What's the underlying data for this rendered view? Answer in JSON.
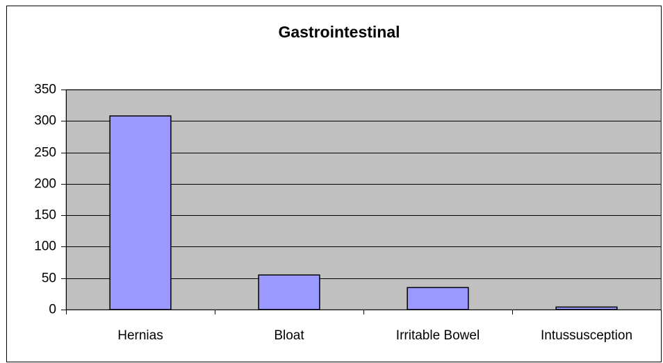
{
  "chart_data": {
    "type": "bar",
    "title": "Gastrointestinal",
    "categories": [
      "Hernias",
      "Bloat",
      "Irritable Bowel",
      "Intussusception"
    ],
    "values": [
      308,
      55,
      35,
      4
    ],
    "color": "#9999ff",
    "ylim": [
      0,
      350
    ],
    "yticks": [
      0,
      50,
      100,
      150,
      200,
      250,
      300,
      350
    ],
    "grid": true
  }
}
